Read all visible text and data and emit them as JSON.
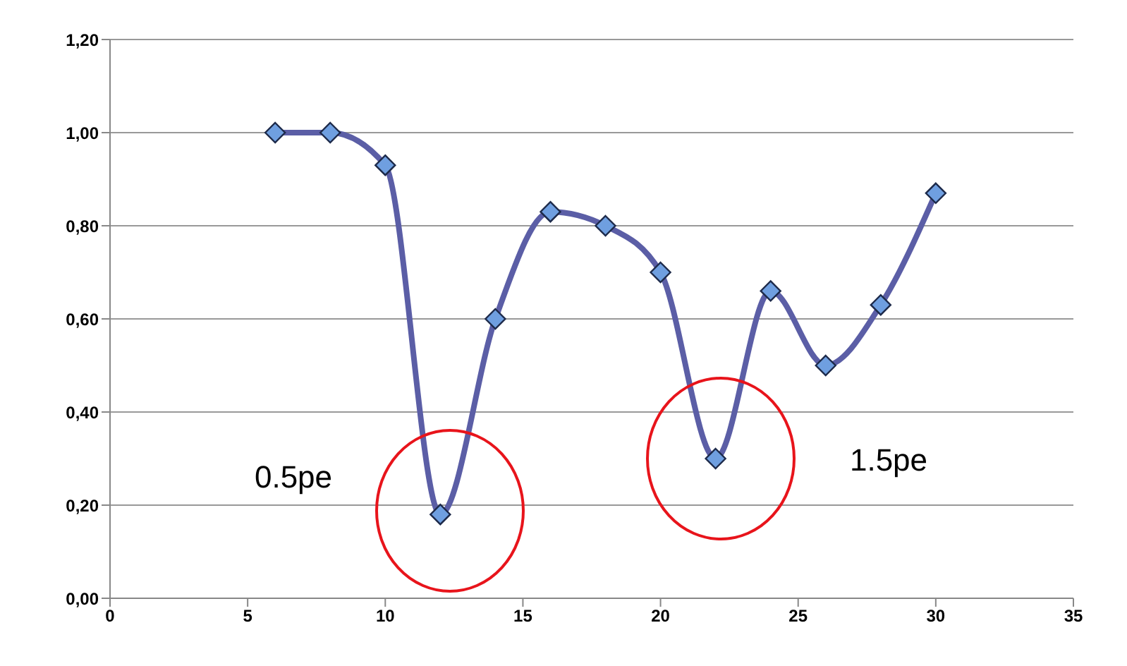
{
  "chart_data": {
    "type": "line",
    "x": [
      6,
      8,
      10,
      12,
      14,
      16,
      18,
      20,
      22,
      24,
      26,
      28,
      30
    ],
    "series": [
      {
        "color": "#5b5ea6",
        "values": [
          1.0,
          1.0,
          0.93,
          0.18,
          0.6,
          0.83,
          0.8,
          0.7,
          0.3,
          0.66,
          0.5,
          0.63,
          0.87
        ]
      }
    ],
    "xlim": [
      0,
      35
    ],
    "xticks": [
      0,
      5,
      10,
      15,
      20,
      25,
      30,
      35
    ],
    "ylim": [
      0,
      1.2
    ],
    "yticks": [
      {
        "value": 0,
        "label": "0,00"
      },
      {
        "value": 0.2,
        "label": "0,20"
      },
      {
        "value": 0.4,
        "label": "0,40"
      },
      {
        "value": 0.6,
        "label": "0,60"
      },
      {
        "value": 0.8,
        "label": "0,80"
      },
      {
        "value": 1.0,
        "label": "1,00"
      },
      {
        "value": 1.2,
        "label": "1,20"
      }
    ],
    "grid": "y",
    "marker": "diamond",
    "legend": false,
    "annotations": [
      "0.5pe",
      "1.5pe"
    ]
  }
}
